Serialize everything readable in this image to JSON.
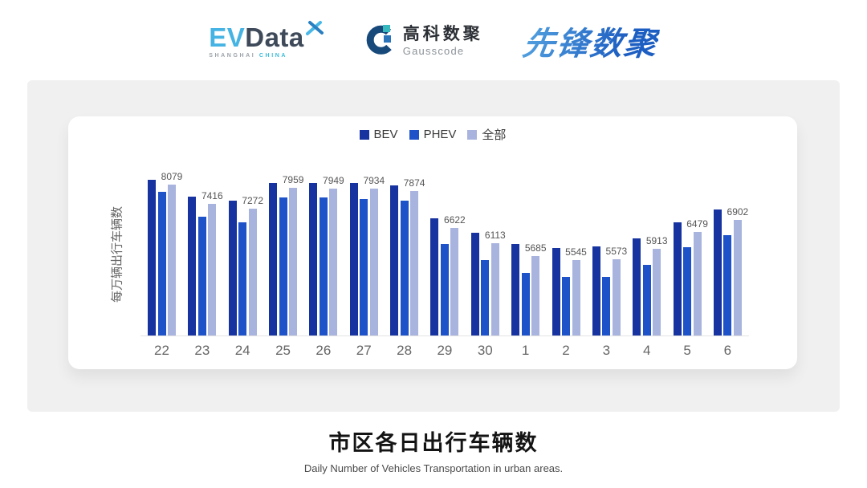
{
  "header": {
    "evdata": {
      "ev": "EV",
      "data": "Data",
      "sub_left": "SHANGHAI",
      "sub_right": "CHINA"
    },
    "gausscode": {
      "cn": "高科数聚",
      "en": "Gausscode"
    },
    "pioneer": {
      "text": "先锋数聚"
    }
  },
  "footer": {
    "title": "市区各日出行车辆数",
    "subtitle": "Daily Number of Vehicles Transportation in urban areas."
  },
  "colors": {
    "bev": "#17339F",
    "phev": "#1E52C8",
    "all": "#A9B4DE",
    "panel_bg": "#F0F0F0",
    "axis_line": "#E2E2E2",
    "tick_text": "#666666",
    "value_label_text": "#555555"
  },
  "chart_data": {
    "type": "bar",
    "title": "",
    "xlabel": "",
    "ylabel": "每万辆出行车辆数",
    "categories": [
      "22",
      "23",
      "24",
      "25",
      "26",
      "27",
      "28",
      "29",
      "30",
      "1",
      "2",
      "3",
      "4",
      "5",
      "6"
    ],
    "series": [
      {
        "name": "BEV",
        "color": "#17339F",
        "value_labels": false,
        "values": [
          8240,
          7660,
          7550,
          8125,
          8130,
          8130,
          8060,
          6950,
          6460,
          6075,
          5945,
          5990,
          6265,
          6815,
          7230
        ]
      },
      {
        "name": "PHEV",
        "color": "#1E52C8",
        "value_labels": false,
        "values": [
          7840,
          7010,
          6800,
          7645,
          7635,
          7600,
          7545,
          6085,
          5540,
          5095,
          4975,
          4980,
          5375,
          5960,
          6380
        ]
      },
      {
        "name": "全部",
        "color": "#A9B4DE",
        "value_labels": true,
        "values": [
          8079,
          7416,
          7272,
          7959,
          7949,
          7934,
          7874,
          6622,
          6113,
          5685,
          5545,
          5573,
          5913,
          6479,
          6902
        ]
      }
    ],
    "ymin": 3000,
    "ylim": [
      3000,
      8500
    ],
    "grid": false,
    "legend_position": "top-center",
    "value_labels_series": "全部"
  }
}
